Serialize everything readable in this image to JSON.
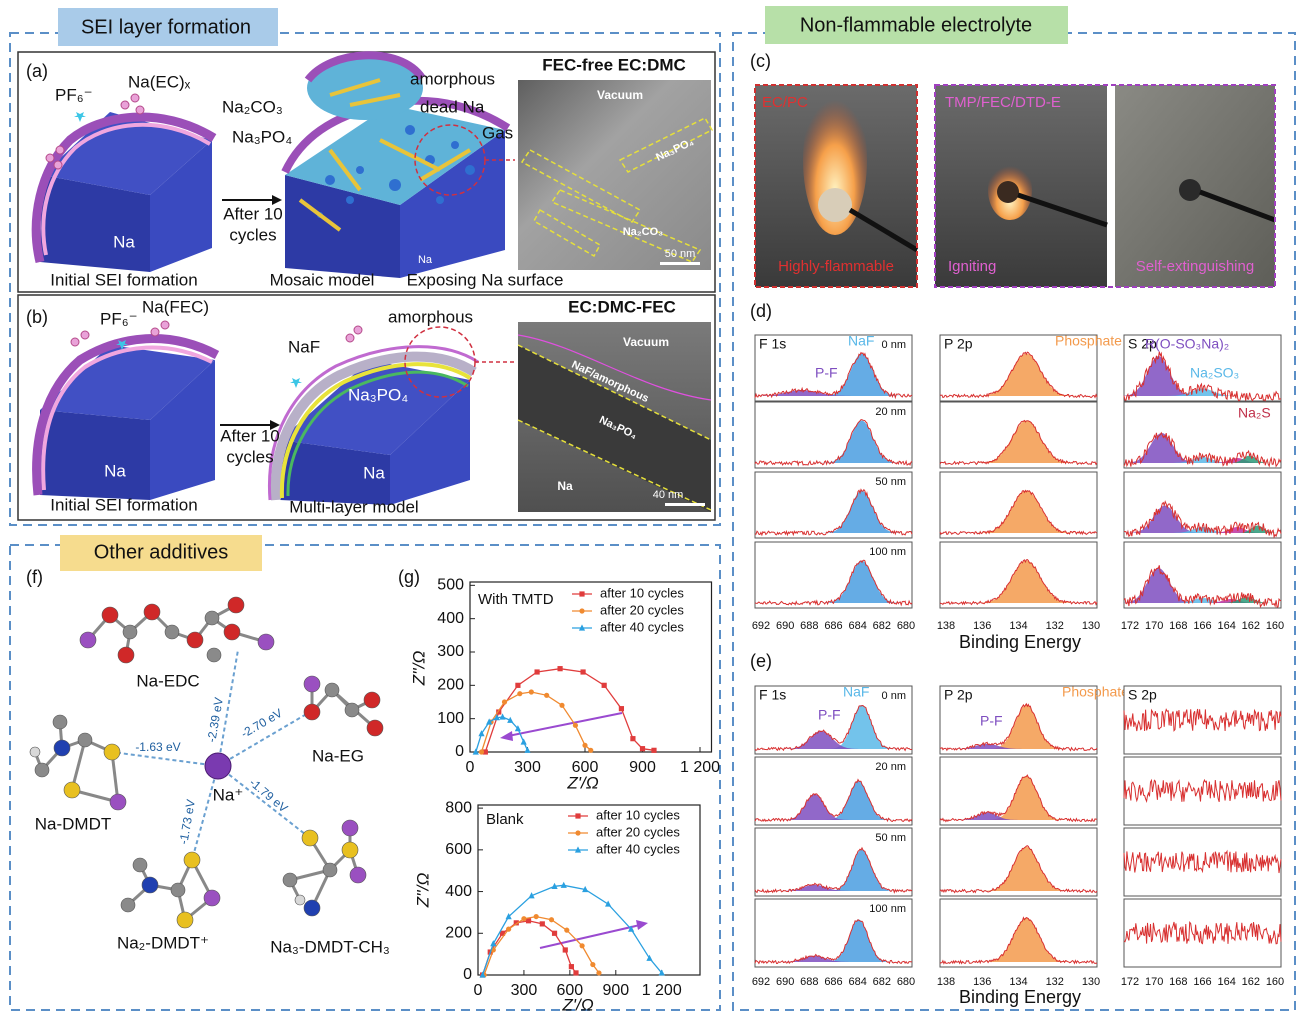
{
  "sections": {
    "sei": "SEI layer formation",
    "nonflammable": "Non-flammable electrolyte",
    "other": "Other additives"
  },
  "panel_a": {
    "label": "(a)",
    "pf6": "PF₆⁻",
    "na_ec": "Na(EC)ₓ",
    "amorphous": "amorphous",
    "na2co3": "Na₂CO₃",
    "dead_na": "dead Na",
    "na3po4": "Na₃PO₄",
    "gas": "Gas",
    "arrow": [
      "After 10",
      "cycles"
    ],
    "na_block": "Na",
    "na_small": "Na",
    "initial": "Initial SEI formation",
    "model": "Mosaic model",
    "exposing": "Exposing Na surface",
    "tem": {
      "title": "FEC-free EC:DMC",
      "vacuum": "Vacuum",
      "na3po4": "Na₃PO₄",
      "na2co3": "Na₂CO₃",
      "scale": "50 nm"
    }
  },
  "panel_b": {
    "label": "(b)",
    "pf6": "PF₆⁻",
    "na_fec": "Na(FEC)",
    "amorphous": "amorphous",
    "naf": "NaF",
    "na3po4": "Na₃PO₄",
    "arrow": [
      "After 10",
      "cycles"
    ],
    "na_left": "Na",
    "na_right": "Na",
    "initial": "Initial SEI formation",
    "model": "Multi-layer model",
    "tem": {
      "title": "EC:DMC-FEC",
      "vacuum": "Vacuum",
      "naf": "NaF/amorphous",
      "na3po4": "Na₃PO₄",
      "na": "Na",
      "scale": "40 nm"
    }
  },
  "panel_c": {
    "label": "(c)",
    "photos": [
      {
        "electrolyte": "EC/PC",
        "result": "Highly-flammable"
      },
      {
        "electrolyte": "TMP/FEC/DTD-E",
        "result": "Igniting"
      },
      {
        "result": "Self-extinguishing"
      }
    ]
  },
  "panel_d": {
    "label": "(d)",
    "depths": [
      "0 nm",
      "20 nm",
      "50 nm",
      "100 nm"
    ],
    "f1s": {
      "title": "F 1s",
      "peaks": [
        "NaF",
        "P-F"
      ],
      "ticks": [
        692,
        690,
        688,
        686,
        684,
        682,
        680
      ]
    },
    "p2p": {
      "title": "P 2p",
      "peaks": [
        "Phosphate"
      ],
      "ticks": [
        138,
        136,
        134,
        132,
        130
      ]
    },
    "s2p": {
      "title": "S 2p",
      "peaks": [
        "R(O-SO₃Na)₂",
        "Na₂SO₃",
        "Na₂S"
      ],
      "ticks": [
        172,
        170,
        168,
        166,
        164,
        162,
        160
      ]
    },
    "xlabel": "Binding Energy"
  },
  "panel_e": {
    "label": "(e)",
    "depths": [
      "0 nm",
      "20 nm",
      "50 nm",
      "100 nm"
    ],
    "f1s": {
      "title": "F 1s",
      "peaks": [
        "NaF",
        "P-F"
      ],
      "ticks": [
        692,
        690,
        688,
        686,
        684,
        682,
        680
      ]
    },
    "p2p": {
      "title": "P 2p",
      "peaks": [
        "Phosphate",
        "P-F"
      ],
      "ticks": [
        138,
        136,
        134,
        132,
        130
      ]
    },
    "s2p": {
      "title": "S 2p",
      "ticks": [
        172,
        170,
        168,
        166,
        164,
        162,
        160
      ]
    },
    "xlabel": "Binding Energy"
  },
  "panel_f": {
    "label": "(f)",
    "center": "Na⁺",
    "molecules": [
      "Na-EDC",
      "Na-EG",
      "Na-DMDT",
      "Na₂-DMDT⁺",
      "Na₃-DMDT-CH₃"
    ],
    "energies": [
      "-2.39 eV",
      "-2.70 eV",
      "-1.63 eV",
      "-1.79 eV",
      "-1.73 eV"
    ]
  },
  "panel_g": {
    "label": "(g)"
  },
  "chart_data": [
    {
      "type": "line",
      "annotation": "With TMTD",
      "xlabel": "Z'/Ω",
      "ylabel": "Z''/Ω",
      "xlim": [
        0,
        1260
      ],
      "ylim": [
        0,
        510
      ],
      "xticks": [
        0,
        300,
        600,
        900,
        {
          "value": 1200,
          "label": "1 200"
        }
      ],
      "yticks": [
        0,
        100,
        200,
        300,
        400,
        500
      ],
      "series": [
        {
          "name": "after 10 cycles",
          "color": "#e03c3c",
          "x": [
            80,
            150,
            250,
            350,
            470,
            590,
            700,
            790,
            850,
            900,
            960
          ],
          "values": [
            0,
            120,
            200,
            240,
            250,
            240,
            200,
            130,
            40,
            10,
            5
          ]
        },
        {
          "name": "after 20 cycles",
          "color": "#f08a30",
          "x": [
            60,
            110,
            180,
            260,
            320,
            400,
            480,
            550,
            600,
            630
          ],
          "values": [
            0,
            90,
            150,
            175,
            180,
            170,
            140,
            80,
            20,
            5
          ]
        },
        {
          "name": "after 40 cycles",
          "color": "#2aa0e0",
          "x": [
            30,
            60,
            100,
            140,
            170,
            210,
            250,
            280,
            300
          ],
          "values": [
            0,
            55,
            90,
            103,
            105,
            95,
            70,
            30,
            5
          ]
        }
      ]
    },
    {
      "type": "line",
      "annotation": "Blank",
      "xlabel": "Z'/Ω",
      "ylabel": "Z''/Ω",
      "xlim": [
        0,
        1450
      ],
      "ylim": [
        0,
        815
      ],
      "xticks": [
        0,
        300,
        600,
        900,
        {
          "value": 1200,
          "label": "1 200"
        }
      ],
      "yticks": [
        0,
        200,
        400,
        600,
        800
      ],
      "series": [
        {
          "name": "after 10 cycles",
          "color": "#e03c3c",
          "x": [
            30,
            80,
            160,
            250,
            330,
            420,
            500,
            570,
            610,
            640
          ],
          "values": [
            0,
            110,
            200,
            250,
            260,
            245,
            200,
            120,
            40,
            10
          ]
        },
        {
          "name": "after 20 cycles",
          "color": "#f08a30",
          "x": [
            40,
            100,
            200,
            300,
            380,
            480,
            580,
            680,
            750,
            790
          ],
          "values": [
            0,
            120,
            220,
            270,
            280,
            265,
            215,
            140,
            50,
            10
          ]
        },
        {
          "name": "after 40 cycles",
          "color": "#2aa0e0",
          "x": [
            30,
            100,
            200,
            350,
            500,
            560,
            700,
            850,
            1000,
            1120,
            1200
          ],
          "values": [
            0,
            150,
            280,
            380,
            425,
            430,
            410,
            340,
            220,
            80,
            10
          ]
        }
      ]
    }
  ]
}
